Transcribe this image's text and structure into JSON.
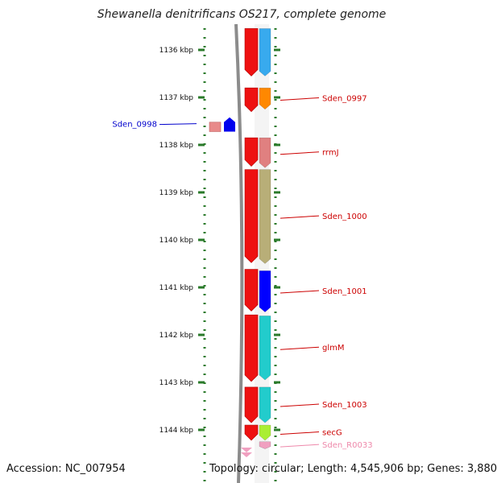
{
  "title": "Shewanella denitrificans OS217, complete genome",
  "footer": {
    "accession": "Accession: NC_007954",
    "topology": "Topology: circular; Length: 4,545,906 bp; Genes: 3,880"
  },
  "colors": {
    "scale": "#2a7a2a",
    "strand_line": "#8c8c8c",
    "forward_arrow": "#ee1111",
    "label_red": "#cc0000",
    "label_blue": "#0000cc",
    "label_pink": "#ee88aa"
  },
  "scale_ticks": [
    {
      "label": "1136 kbp",
      "kbp": 1136
    },
    {
      "label": "1137 kbp",
      "kbp": 1137
    },
    {
      "label": "1138 kbp",
      "kbp": 1138
    },
    {
      "label": "1139 kbp",
      "kbp": 1139
    },
    {
      "label": "1140 kbp",
      "kbp": 1140
    },
    {
      "label": "1141 kbp",
      "kbp": 1141
    },
    {
      "label": "1142 kbp",
      "kbp": 1142
    },
    {
      "label": "1143 kbp",
      "kbp": 1143
    },
    {
      "label": "1144 kbp",
      "kbp": 1144
    }
  ],
  "genes": [
    {
      "name": "",
      "start_kbp": 1135.55,
      "end_kbp": 1136.55,
      "color": "#38aaee",
      "strand": "forward"
    },
    {
      "name": "Sden_0997",
      "start_kbp": 1136.8,
      "end_kbp": 1137.25,
      "color": "#ff8800",
      "strand": "forward"
    },
    {
      "name": "Sden_0998",
      "start_kbp": 1137.42,
      "end_kbp": 1137.72,
      "color": "#e88a8a",
      "strand": "reverse"
    },
    {
      "name": "rrmJ",
      "start_kbp": 1137.85,
      "end_kbp": 1138.48,
      "color": "#e08080",
      "strand": "forward"
    },
    {
      "name": "Sden_1000",
      "start_kbp": 1138.52,
      "end_kbp": 1140.5,
      "color": "#b8ae78",
      "strand": "forward"
    },
    {
      "name": "Sden_1001",
      "start_kbp": 1140.65,
      "end_kbp": 1141.52,
      "color": "#0000ff",
      "strand": "forward"
    },
    {
      "name": "glmM",
      "start_kbp": 1141.6,
      "end_kbp": 1142.95,
      "color": "#22cccc",
      "strand": "forward"
    },
    {
      "name": "Sden_1003",
      "start_kbp": 1143.1,
      "end_kbp": 1143.85,
      "color": "#22cccc",
      "strand": "forward"
    },
    {
      "name": "secG",
      "start_kbp": 1143.9,
      "end_kbp": 1144.22,
      "color": "#aaee33",
      "strand": "forward"
    },
    {
      "name": "Sden_R0033",
      "start_kbp": 1144.25,
      "end_kbp": 1144.4,
      "color": "#f0a0c0",
      "strand": "forward"
    }
  ]
}
